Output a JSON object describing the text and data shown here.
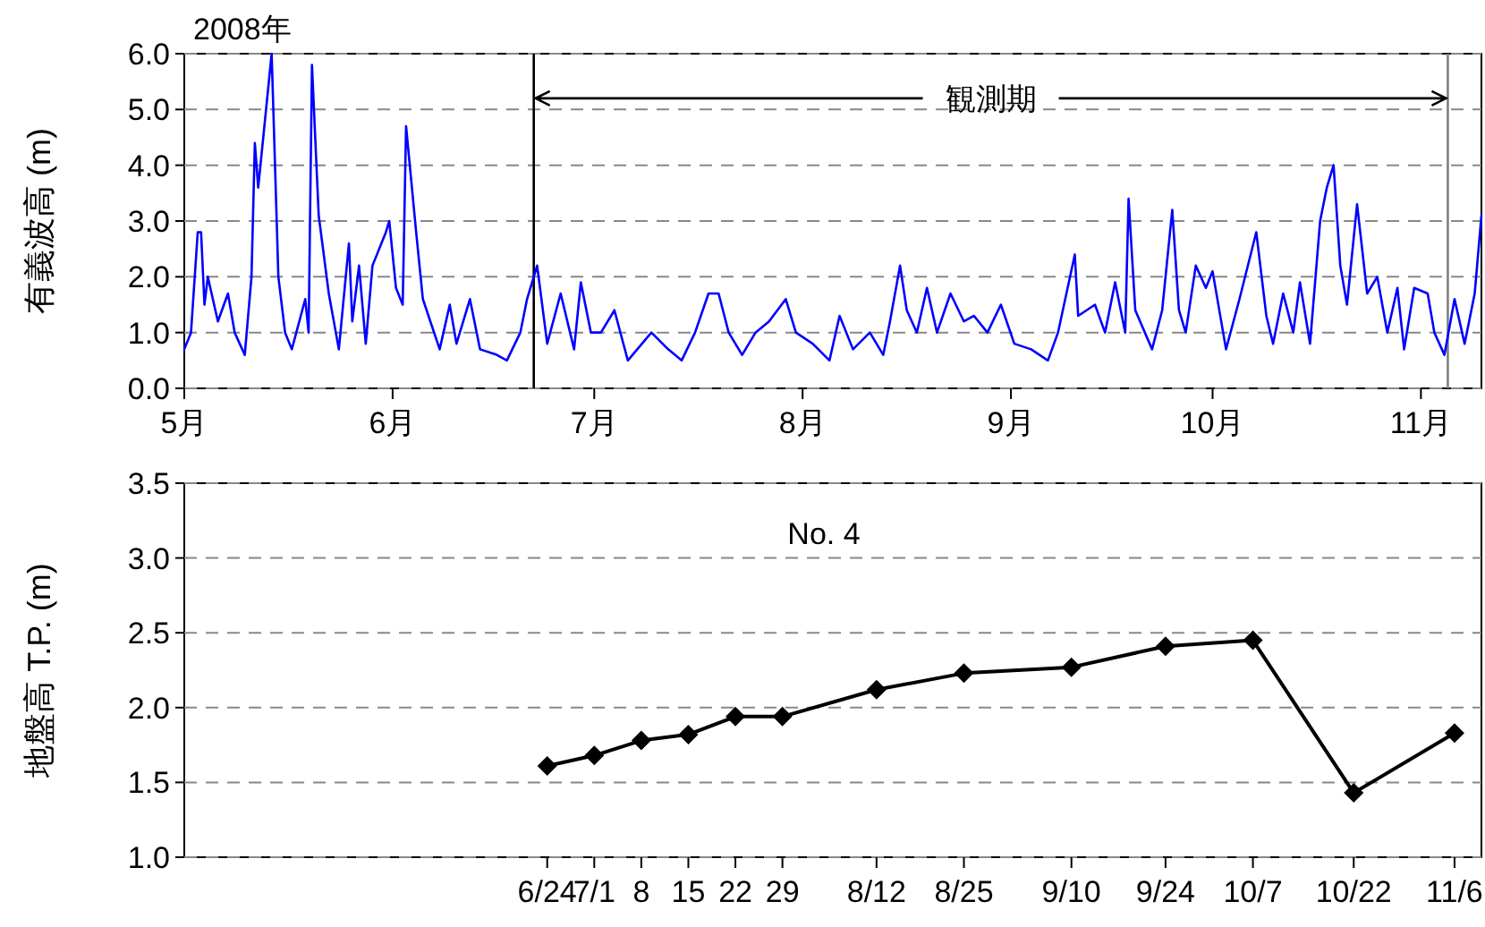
{
  "chart_data": [
    {
      "type": "line",
      "ylabel": "有義波高 (m)",
      "annotations": [
        "2008年",
        {
          "text": "観測期",
          "x": "2008-06-22",
          "y": 5.2
        }
      ],
      "xlim": [
        "2008-05-01",
        "2008-11-10"
      ],
      "xticks": [
        {
          "value": "2008-05-01",
          "label": "5月"
        },
        {
          "value": "2008-06-01",
          "label": "6月"
        },
        {
          "value": "2008-07-01",
          "label": "7月"
        },
        {
          "value": "2008-08-01",
          "label": "8月"
        },
        {
          "value": "2008-09-01",
          "label": "9月"
        },
        {
          "value": "2008-10-01",
          "label": "10月"
        },
        {
          "value": "2008-11-01",
          "label": "11月"
        }
      ],
      "ylim": [
        0,
        6
      ],
      "yticks": [
        {
          "value": 0,
          "label": "0.0"
        },
        {
          "value": 1,
          "label": "1.0"
        },
        {
          "value": 2,
          "label": "2.0"
        },
        {
          "value": 3,
          "label": "3.0"
        },
        {
          "value": 4,
          "label": "4.0"
        },
        {
          "value": 5,
          "label": "5.0"
        },
        {
          "value": 6,
          "label": "6.0"
        }
      ],
      "grid": "y",
      "line_style": "solid",
      "marker": "none",
      "ref_lines": [
        {
          "axis": "x",
          "value": "2008-06-22",
          "color": "#000000"
        },
        {
          "axis": "x",
          "value": "2008-11-05",
          "color": "#808080"
        }
      ],
      "series": [
        {
          "color": "#0000ff",
          "x": [
            "2008-05-01T00:00",
            "2008-05-02T00:00",
            "2008-05-03T00:00",
            "2008-05-03T12:00",
            "2008-05-04T00:00",
            "2008-05-04T12:00",
            "2008-05-06T00:00",
            "2008-05-07T12:00",
            "2008-05-08T12:00",
            "2008-05-10T00:00",
            "2008-05-11T00:00",
            "2008-05-11T12:00",
            "2008-05-12T00:00",
            "2008-05-13T00:00",
            "2008-05-14T00:00",
            "2008-05-15T00:00",
            "2008-05-16T00:00",
            "2008-05-17T00:00",
            "2008-05-19T00:00",
            "2008-05-19T12:00",
            "2008-05-20T00:00",
            "2008-05-21T00:00",
            "2008-05-22T12:00",
            "2008-05-24T00:00",
            "2008-05-25T12:00",
            "2008-05-26T00:00",
            "2008-05-27T00:00",
            "2008-05-28T00:00",
            "2008-05-29T00:00",
            "2008-05-31T00:00",
            "2008-05-31T12:00",
            "2008-06-01T12:00",
            "2008-06-02T12:00",
            "2008-06-03T00:00",
            "2008-06-04T12:00",
            "2008-06-05T12:00",
            "2008-06-08T00:00",
            "2008-06-09T12:00",
            "2008-06-10T12:00",
            "2008-06-12T12:00",
            "2008-06-14T00:00",
            "2008-06-16T12:00",
            "2008-06-18T00:00",
            "2008-06-20T00:00",
            "2008-06-21T00:00",
            "2008-06-22T12:00",
            "2008-06-24T00:00",
            "2008-06-26T00:00",
            "2008-06-28T00:00",
            "2008-06-29T00:00",
            "2008-06-30T12:00",
            "2008-07-02T00:00",
            "2008-07-04T00:00",
            "2008-07-06T00:00",
            "2008-07-09T12:00",
            "2008-07-12T00:00",
            "2008-07-14T00:00",
            "2008-07-16T00:00",
            "2008-07-18T00:00",
            "2008-07-19T12:00",
            "2008-07-21T00:00",
            "2008-07-23T00:00",
            "2008-07-25T00:00",
            "2008-07-27T00:00",
            "2008-07-29T12:00",
            "2008-07-31T00:00",
            "2008-08-02T12:00",
            "2008-08-05T00:00",
            "2008-08-06T12:00",
            "2008-08-08T12:00",
            "2008-08-11T00:00",
            "2008-08-13T00:00",
            "2008-08-14T00:00",
            "2008-08-15T12:00",
            "2008-08-16T12:00",
            "2008-08-18T00:00",
            "2008-08-19T12:00",
            "2008-08-21T00:00",
            "2008-08-23T00:00",
            "2008-08-25T00:00",
            "2008-08-26T12:00",
            "2008-08-28T12:00",
            "2008-08-30T12:00",
            "2008-09-01T12:00",
            "2008-09-04T00:00",
            "2008-09-06T12:00",
            "2008-09-08T00:00",
            "2008-09-10T12:00",
            "2008-09-11T00:00",
            "2008-09-13T12:00",
            "2008-09-15T00:00",
            "2008-09-16T12:00",
            "2008-09-18T00:00",
            "2008-09-18T12:00",
            "2008-09-19T12:00",
            "2008-09-22T00:00",
            "2008-09-23T12:00",
            "2008-09-25T00:00",
            "2008-09-26T00:00",
            "2008-09-27T00:00",
            "2008-09-28T12:00",
            "2008-09-30T00:00",
            "2008-10-01T00:00",
            "2008-10-03T00:00",
            "2008-10-05T00:00",
            "2008-10-07T12:00",
            "2008-10-09T00:00",
            "2008-10-10T00:00",
            "2008-10-11T12:00",
            "2008-10-13T00:00",
            "2008-10-14T00:00",
            "2008-10-15T12:00",
            "2008-10-17T00:00",
            "2008-10-18T00:00",
            "2008-10-19T00:00",
            "2008-10-20T00:00",
            "2008-10-21T00:00",
            "2008-10-22T12:00",
            "2008-10-24T00:00",
            "2008-10-25T12:00",
            "2008-10-27T00:00",
            "2008-10-28T12:00",
            "2008-10-29T12:00",
            "2008-10-31T00:00",
            "2008-11-02T00:00",
            "2008-11-03T00:00",
            "2008-11-04T12:00",
            "2008-11-06T00:00",
            "2008-11-07T12:00",
            "2008-11-09T00:00",
            "2008-11-10T00:00"
          ],
          "values": [
            0.7,
            1.0,
            2.8,
            2.8,
            1.5,
            2.0,
            1.2,
            1.7,
            1.0,
            0.6,
            2.0,
            4.4,
            3.6,
            4.8,
            6.0,
            2.0,
            1.0,
            0.7,
            1.6,
            1.0,
            5.8,
            3.1,
            1.7,
            0.7,
            2.6,
            1.2,
            2.2,
            0.8,
            2.2,
            2.8,
            3.0,
            1.8,
            1.5,
            4.7,
            2.8,
            1.6,
            0.7,
            1.5,
            0.8,
            1.6,
            0.7,
            0.6,
            0.5,
            1.0,
            1.6,
            2.2,
            0.8,
            1.7,
            0.7,
            1.9,
            1.0,
            1.0,
            1.4,
            0.5,
            1.0,
            0.7,
            0.5,
            1.0,
            1.7,
            1.7,
            1.0,
            0.6,
            1.0,
            1.2,
            1.6,
            1.0,
            0.8,
            0.5,
            1.3,
            0.7,
            1.0,
            0.6,
            1.2,
            2.2,
            1.4,
            1.0,
            1.8,
            1.0,
            1.7,
            1.2,
            1.3,
            1.0,
            1.5,
            0.8,
            0.7,
            0.5,
            1.0,
            2.4,
            1.3,
            1.5,
            1.0,
            1.9,
            1.0,
            3.4,
            1.4,
            0.7,
            1.4,
            3.2,
            1.4,
            1.0,
            2.2,
            1.8,
            2.1,
            0.7,
            1.6,
            2.8,
            1.3,
            0.8,
            1.7,
            1.0,
            1.9,
            0.8,
            3.0,
            3.6,
            4.0,
            2.2,
            1.5,
            3.3,
            1.7,
            2.0,
            1.0,
            1.8,
            0.7,
            1.8,
            1.7,
            1.0,
            0.6,
            1.6,
            0.8,
            1.7,
            3.1
          ]
        }
      ]
    },
    {
      "type": "line",
      "title": "No. 4",
      "ylabel": "地盤高 T.P. (m)",
      "xlim": [
        "2008-05-01",
        "2008-11-10"
      ],
      "xticks": [
        {
          "value": "2008-06-24",
          "label": "6/24"
        },
        {
          "value": "2008-07-01",
          "label": "7/1"
        },
        {
          "value": "2008-07-08",
          "label": "8"
        },
        {
          "value": "2008-07-15",
          "label": "15"
        },
        {
          "value": "2008-07-22",
          "label": "22"
        },
        {
          "value": "2008-07-29",
          "label": "29"
        },
        {
          "value": "2008-08-12",
          "label": "8/12"
        },
        {
          "value": "2008-08-25",
          "label": "8/25"
        },
        {
          "value": "2008-09-10",
          "label": "9/10"
        },
        {
          "value": "2008-09-24",
          "label": "9/24"
        },
        {
          "value": "2008-10-07",
          "label": "10/7"
        },
        {
          "value": "2008-10-22",
          "label": "10/22"
        },
        {
          "value": "2008-11-06",
          "label": "11/6"
        }
      ],
      "ylim": [
        1,
        3.5
      ],
      "yticks": [
        {
          "value": 1,
          "label": "1.0"
        },
        {
          "value": 1.5,
          "label": "1.5"
        },
        {
          "value": 2,
          "label": "2.0"
        },
        {
          "value": 2.5,
          "label": "2.5"
        },
        {
          "value": 3,
          "label": "3.0"
        },
        {
          "value": 3.5,
          "label": "3.5"
        }
      ],
      "grid": "y",
      "line_style": "solid",
      "marker": "diamond",
      "series": [
        {
          "color": "#000000",
          "x": [
            "2008-06-24",
            "2008-07-01",
            "2008-07-08",
            "2008-07-15",
            "2008-07-22",
            "2008-07-29",
            "2008-08-12",
            "2008-08-25",
            "2008-09-10",
            "2008-09-24",
            "2008-10-07",
            "2008-10-22",
            "2008-11-06"
          ],
          "values": [
            1.61,
            1.68,
            1.78,
            1.82,
            1.94,
            1.94,
            2.12,
            2.23,
            2.27,
            2.41,
            2.45,
            1.43,
            1.83
          ]
        }
      ]
    }
  ]
}
